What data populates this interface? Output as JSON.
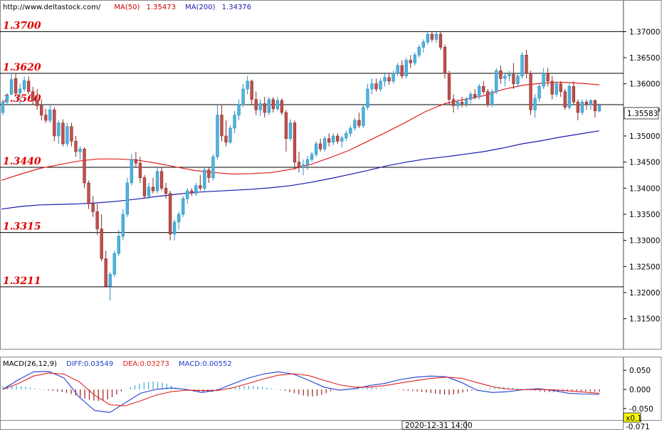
{
  "header": {
    "source": "http://www.deltastock.com/",
    "ma50_label": "MA(50)",
    "ma50_value": "1.35473",
    "ma200_label": "MA(200)",
    "ma200_value": "1.34376"
  },
  "macd_header": {
    "name": "MACD(26,12,9)",
    "diff": "DIFF:0.03549",
    "dea": "DEA:0.03273",
    "macd": "MACD:0.00552"
  },
  "colors": {
    "up": "#4fb3df",
    "down": "#c0504d",
    "ma50": "#e02020",
    "ma200": "#1a1ab0",
    "level_text": "#e00000",
    "ma50_text": "#cc0000",
    "ma200_text": "#1a1ab0",
    "diff": "#1f3fd0",
    "dea": "#e02020",
    "hist_pos": "#4fb3df",
    "hist_neg": "#a03030"
  },
  "chart_data": [
    {
      "type": "candlestick",
      "ylim": [
        1.3095,
        1.3755
      ],
      "y_ticks": [
        "1.37000",
        "1.36500",
        "1.36000",
        "1.35500",
        "1.35000",
        "1.34500",
        "1.34000",
        "1.33500",
        "1.33000",
        "1.32500",
        "1.32000",
        "1.31500"
      ],
      "y_tick_values": [
        1.37,
        1.365,
        1.36,
        1.355,
        1.35,
        1.345,
        1.34,
        1.335,
        1.33,
        1.325,
        1.32,
        1.315
      ],
      "current_price": "1.35583",
      "current_price_value": 1.35583,
      "levels": [
        {
          "label": "1.3700",
          "value": 1.37
        },
        {
          "label": "1.3620",
          "value": 1.362
        },
        {
          "label": "1.3560",
          "value": 1.356
        },
        {
          "label": "1.3440",
          "value": 1.344
        },
        {
          "label": "1.3315",
          "value": 1.3315
        },
        {
          "label": "1.3211",
          "value": 1.3211
        }
      ],
      "time_label": "2020-12-31 14:00",
      "series": [
        {
          "name": "MA(50)",
          "value": 1.35473,
          "points": [
            1.3415,
            1.3427,
            1.3438,
            1.3445,
            1.3452,
            1.3456,
            1.3456,
            1.3454,
            1.3448,
            1.3441,
            1.3434,
            1.343,
            1.3427,
            1.3428,
            1.343,
            1.3436,
            1.3445,
            1.3458,
            1.3472,
            1.349,
            1.3508,
            1.3527,
            1.3547,
            1.3562,
            1.357,
            1.3577,
            1.3589,
            1.3597,
            1.3601,
            1.3603,
            1.3601,
            1.3598
          ]
        },
        {
          "name": "MA(200)",
          "value": 1.34376,
          "points": [
            1.336,
            1.3365,
            1.3368,
            1.3369,
            1.337,
            1.3372,
            1.3375,
            1.3379,
            1.3384,
            1.3388,
            1.3392,
            1.3394,
            1.3396,
            1.3398,
            1.3401,
            1.3405,
            1.3411,
            1.3418,
            1.3426,
            1.3434,
            1.3443,
            1.345,
            1.3456,
            1.346,
            1.3465,
            1.347,
            1.3477,
            1.3485,
            1.3491,
            1.3498,
            1.3504,
            1.351
          ]
        }
      ],
      "ohlc": [
        [
          1.3545,
          1.357,
          1.354,
          1.3565
        ],
        [
          1.3565,
          1.3582,
          1.356,
          1.3578
        ],
        [
          1.358,
          1.362,
          1.3578,
          1.3608
        ],
        [
          1.361,
          1.362,
          1.3575,
          1.3582
        ],
        [
          1.3582,
          1.36,
          1.356,
          1.359
        ],
        [
          1.359,
          1.3614,
          1.3585,
          1.3606
        ],
        [
          1.3605,
          1.3614,
          1.358,
          1.3585
        ],
        [
          1.3585,
          1.3594,
          1.356,
          1.3568
        ],
        [
          1.3568,
          1.359,
          1.355,
          1.3558
        ],
        [
          1.3558,
          1.357,
          1.353,
          1.354
        ],
        [
          1.354,
          1.3552,
          1.3525,
          1.353
        ],
        [
          1.353,
          1.356,
          1.3525,
          1.355
        ],
        [
          1.355,
          1.3555,
          1.349,
          1.35
        ],
        [
          1.35,
          1.353,
          1.3485,
          1.3525
        ],
        [
          1.3525,
          1.3532,
          1.348,
          1.3485
        ],
        [
          1.3485,
          1.3525,
          1.348,
          1.3518
        ],
        [
          1.3518,
          1.3525,
          1.348,
          1.349
        ],
        [
          1.349,
          1.35,
          1.346,
          1.347
        ],
        [
          1.347,
          1.348,
          1.3455,
          1.3475
        ],
        [
          1.3475,
          1.3478,
          1.34,
          1.341
        ],
        [
          1.341,
          1.3415,
          1.336,
          1.337
        ],
        [
          1.337,
          1.3385,
          1.3345,
          1.3355
        ],
        [
          1.3355,
          1.337,
          1.331,
          1.3322
        ],
        [
          1.3322,
          1.335,
          1.326,
          1.3265
        ],
        [
          1.3265,
          1.328,
          1.321,
          1.3212
        ],
        [
          1.3212,
          1.324,
          1.3185,
          1.3235
        ],
        [
          1.3235,
          1.328,
          1.323,
          1.3275
        ],
        [
          1.3275,
          1.332,
          1.327,
          1.3308
        ],
        [
          1.3308,
          1.336,
          1.33,
          1.335
        ],
        [
          1.335,
          1.342,
          1.3345,
          1.341
        ],
        [
          1.341,
          1.3465,
          1.3405,
          1.3455
        ],
        [
          1.3455,
          1.347,
          1.344,
          1.3448
        ],
        [
          1.3448,
          1.346,
          1.341,
          1.342
        ],
        [
          1.342,
          1.3425,
          1.338,
          1.3385
        ],
        [
          1.3385,
          1.341,
          1.338,
          1.3402
        ],
        [
          1.3402,
          1.342,
          1.339,
          1.3395
        ],
        [
          1.3395,
          1.344,
          1.339,
          1.3432
        ],
        [
          1.3432,
          1.344,
          1.3395,
          1.34
        ],
        [
          1.34,
          1.341,
          1.338,
          1.339
        ],
        [
          1.339,
          1.3395,
          1.33,
          1.3312
        ],
        [
          1.3312,
          1.334,
          1.33,
          1.3335
        ],
        [
          1.3335,
          1.3355,
          1.332,
          1.335
        ],
        [
          1.335,
          1.3385,
          1.3345,
          1.338
        ],
        [
          1.338,
          1.34,
          1.337,
          1.3395
        ],
        [
          1.3395,
          1.34,
          1.3385,
          1.339
        ],
        [
          1.339,
          1.341,
          1.3385,
          1.3405
        ],
        [
          1.3405,
          1.3425,
          1.3395,
          1.34
        ],
        [
          1.34,
          1.344,
          1.3395,
          1.3435
        ],
        [
          1.3435,
          1.344,
          1.341,
          1.342
        ],
        [
          1.342,
          1.3465,
          1.3415,
          1.346
        ],
        [
          1.346,
          1.356,
          1.3455,
          1.354
        ],
        [
          1.354,
          1.356,
          1.349,
          1.35
        ],
        [
          1.35,
          1.353,
          1.348,
          1.3488
        ],
        [
          1.3488,
          1.352,
          1.3485,
          1.3515
        ],
        [
          1.3515,
          1.3548,
          1.3505,
          1.354
        ],
        [
          1.354,
          1.357,
          1.353,
          1.356
        ],
        [
          1.356,
          1.36,
          1.3555,
          1.359
        ],
        [
          1.359,
          1.3615,
          1.358,
          1.3605
        ],
        [
          1.3605,
          1.3608,
          1.356,
          1.357
        ],
        [
          1.357,
          1.3585,
          1.354,
          1.355
        ],
        [
          1.355,
          1.357,
          1.3538,
          1.3562
        ],
        [
          1.3562,
          1.3575,
          1.3535,
          1.3545
        ],
        [
          1.3545,
          1.3575,
          1.354,
          1.357
        ],
        [
          1.357,
          1.3575,
          1.3545,
          1.3552
        ],
        [
          1.3552,
          1.3575,
          1.3548,
          1.3568
        ],
        [
          1.3568,
          1.3572,
          1.354,
          1.3545
        ],
        [
          1.3545,
          1.355,
          1.347,
          1.3495
        ],
        [
          1.3495,
          1.3532,
          1.349,
          1.3525
        ],
        [
          1.3525,
          1.353,
          1.3435,
          1.345
        ],
        [
          1.345,
          1.347,
          1.343,
          1.344
        ],
        [
          1.344,
          1.3455,
          1.3425,
          1.3445
        ],
        [
          1.3445,
          1.3462,
          1.3435,
          1.3455
        ],
        [
          1.3455,
          1.347,
          1.345,
          1.3465
        ],
        [
          1.3465,
          1.349,
          1.346,
          1.3485
        ],
        [
          1.3485,
          1.3495,
          1.347,
          1.3475
        ],
        [
          1.3475,
          1.35,
          1.347,
          1.3495
        ],
        [
          1.3495,
          1.3505,
          1.348,
          1.3488
        ],
        [
          1.3488,
          1.3505,
          1.3482,
          1.35
        ],
        [
          1.35,
          1.3505,
          1.3485,
          1.349
        ],
        [
          1.349,
          1.35,
          1.3478,
          1.3496
        ],
        [
          1.3496,
          1.351,
          1.349,
          1.3505
        ],
        [
          1.3505,
          1.352,
          1.3498,
          1.3515
        ],
        [
          1.3515,
          1.3535,
          1.351,
          1.353
        ],
        [
          1.353,
          1.3545,
          1.3515,
          1.352
        ],
        [
          1.352,
          1.356,
          1.3515,
          1.3555
        ],
        [
          1.3555,
          1.36,
          1.355,
          1.359
        ],
        [
          1.359,
          1.361,
          1.358,
          1.36
        ],
        [
          1.36,
          1.361,
          1.3585,
          1.359
        ],
        [
          1.359,
          1.361,
          1.3585,
          1.3605
        ],
        [
          1.3605,
          1.362,
          1.3595,
          1.3612
        ],
        [
          1.3612,
          1.362,
          1.3598,
          1.3605
        ],
        [
          1.3605,
          1.3625,
          1.36,
          1.362
        ],
        [
          1.362,
          1.364,
          1.3615,
          1.3635
        ],
        [
          1.3635,
          1.3645,
          1.361,
          1.3615
        ],
        [
          1.3615,
          1.365,
          1.361,
          1.3645
        ],
        [
          1.3645,
          1.3655,
          1.363,
          1.364
        ],
        [
          1.364,
          1.366,
          1.3635,
          1.3655
        ],
        [
          1.3655,
          1.3675,
          1.365,
          1.367
        ],
        [
          1.367,
          1.3685,
          1.366,
          1.368
        ],
        [
          1.368,
          1.37,
          1.3675,
          1.3695
        ],
        [
          1.3695,
          1.37,
          1.368,
          1.3685
        ],
        [
          1.3685,
          1.37,
          1.3678,
          1.3695
        ],
        [
          1.3695,
          1.37,
          1.3665,
          1.367
        ],
        [
          1.367,
          1.3675,
          1.361,
          1.362
        ],
        [
          1.362,
          1.3625,
          1.356,
          1.357
        ],
        [
          1.357,
          1.358,
          1.3545,
          1.3558
        ],
        [
          1.3558,
          1.357,
          1.355,
          1.3565
        ],
        [
          1.3565,
          1.3575,
          1.3555,
          1.3562
        ],
        [
          1.3562,
          1.3575,
          1.3555,
          1.357
        ],
        [
          1.357,
          1.3585,
          1.3562,
          1.358
        ],
        [
          1.358,
          1.359,
          1.357,
          1.3575
        ],
        [
          1.3575,
          1.36,
          1.357,
          1.3595
        ],
        [
          1.3595,
          1.3605,
          1.358,
          1.3585
        ],
        [
          1.3585,
          1.359,
          1.3555,
          1.356
        ],
        [
          1.356,
          1.359,
          1.3555,
          1.3585
        ],
        [
          1.3585,
          1.363,
          1.358,
          1.3625
        ],
        [
          1.3625,
          1.3635,
          1.36,
          1.361
        ],
        [
          1.361,
          1.362,
          1.3595,
          1.3615
        ],
        [
          1.3615,
          1.3625,
          1.3605,
          1.3618
        ],
        [
          1.3618,
          1.364,
          1.359,
          1.36
        ],
        [
          1.36,
          1.362,
          1.3595,
          1.3615
        ],
        [
          1.3615,
          1.366,
          1.361,
          1.3655
        ],
        [
          1.3655,
          1.3665,
          1.361,
          1.362
        ],
        [
          1.362,
          1.3625,
          1.354,
          1.355
        ],
        [
          1.355,
          1.358,
          1.3535,
          1.3572
        ],
        [
          1.3572,
          1.36,
          1.3565,
          1.3595
        ],
        [
          1.3595,
          1.363,
          1.359,
          1.362
        ],
        [
          1.362,
          1.363,
          1.3595,
          1.3605
        ],
        [
          1.3605,
          1.3615,
          1.357,
          1.358
        ],
        [
          1.358,
          1.3605,
          1.3575,
          1.36
        ],
        [
          1.36,
          1.3605,
          1.3575,
          1.3585
        ],
        [
          1.3585,
          1.359,
          1.355,
          1.3555
        ],
        [
          1.3555,
          1.36,
          1.355,
          1.3595
        ],
        [
          1.3595,
          1.3605,
          1.356,
          1.3565
        ],
        [
          1.3565,
          1.357,
          1.353,
          1.3545
        ],
        [
          1.3545,
          1.357,
          1.354,
          1.3565
        ],
        [
          1.3565,
          1.357,
          1.355,
          1.356
        ],
        [
          1.356,
          1.357,
          1.355,
          1.3568
        ],
        [
          1.3568,
          1.357,
          1.3535,
          1.3548
        ],
        [
          1.3548,
          1.3562,
          1.3545,
          1.3558
        ]
      ]
    },
    {
      "type": "macd",
      "ylim": [
        -0.08,
        0.08
      ],
      "y_ticks": [
        "0.050",
        "0.000",
        "-0.050"
      ],
      "y_tick_values": [
        0.05,
        0.0,
        -0.05
      ],
      "cut_tick_bottom": "-0.071",
      "corner_label": "x0.1",
      "diff_value": 0.03549,
      "dea_value": 0.03273,
      "macd_value": 0.00552,
      "diff": [
        0.0,
        0.025,
        0.046,
        0.047,
        0.03,
        -0.02,
        -0.055,
        -0.06,
        -0.035,
        -0.01,
        0.0,
        0.004,
        0.0,
        -0.008,
        -0.002,
        0.014,
        0.029,
        0.04,
        0.046,
        0.04,
        0.024,
        0.006,
        -0.002,
        0.002,
        0.01,
        0.016,
        0.026,
        0.032,
        0.035,
        0.033,
        0.018,
        -0.002,
        -0.008,
        -0.006,
        -0.001,
        0.002,
        -0.003,
        -0.01,
        -0.012,
        -0.013
      ],
      "dea": [
        0.0,
        0.015,
        0.035,
        0.043,
        0.04,
        0.02,
        -0.015,
        -0.04,
        -0.043,
        -0.03,
        -0.015,
        -0.006,
        -0.002,
        -0.003,
        -0.003,
        0.004,
        0.015,
        0.027,
        0.037,
        0.041,
        0.036,
        0.024,
        0.012,
        0.006,
        0.006,
        0.01,
        0.017,
        0.023,
        0.029,
        0.032,
        0.029,
        0.018,
        0.007,
        0.001,
        -0.001,
        0.0,
        -0.001,
        -0.004,
        -0.007,
        -0.01
      ],
      "hist": [
        0.009,
        0.0095,
        0.01,
        0.0095,
        0.0085,
        0.007,
        0.005,
        0.003,
        0.001,
        -0.001,
        -0.0025,
        -0.004,
        -0.0055,
        -0.007,
        -0.009,
        -0.012,
        -0.016,
        -0.02,
        -0.024,
        -0.027,
        -0.029,
        -0.03,
        -0.029,
        -0.026,
        -0.02,
        -0.013,
        -0.005,
        0.001,
        0.006,
        0.011,
        0.015,
        0.018,
        0.02,
        0.021,
        0.02,
        0.018,
        0.015,
        0.01,
        0.005,
        0.001,
        -0.001,
        -0.0025,
        -0.004,
        -0.0055,
        -0.0065,
        -0.007,
        -0.006,
        -0.004,
        -0.001,
        0.002,
        0.005,
        0.007,
        0.008,
        0.009,
        0.0095,
        0.009,
        0.008,
        0.007,
        0.005,
        0.003,
        0.001,
        -0.0015,
        -0.004,
        -0.007,
        -0.01,
        -0.013,
        -0.016,
        -0.018,
        -0.0185,
        -0.017,
        -0.014,
        -0.01,
        -0.005,
        -0.001,
        0.0,
        0.001,
        0.002,
        0.003,
        0.004,
        0.005,
        0.0055,
        0.005,
        0.004,
        0.003,
        0.002,
        0.001,
        0.0,
        -0.001,
        -0.0025,
        -0.0035,
        -0.0045,
        -0.0055,
        -0.0065,
        -0.008,
        -0.0095,
        -0.011,
        -0.0125,
        -0.0135,
        -0.014,
        -0.013,
        -0.011,
        -0.008,
        -0.005,
        -0.003,
        -0.001,
        0.001,
        0.002,
        0.0035,
        0.005,
        0.006,
        0.0065,
        0.006,
        0.005,
        0.004,
        0.003,
        0.001,
        -0.001,
        -0.003,
        -0.005,
        -0.0065,
        -0.007,
        -0.007,
        -0.006,
        -0.005,
        -0.004,
        -0.0035,
        -0.004,
        -0.0045,
        -0.005,
        -0.0055,
        -0.006,
        -0.006
      ]
    }
  ]
}
